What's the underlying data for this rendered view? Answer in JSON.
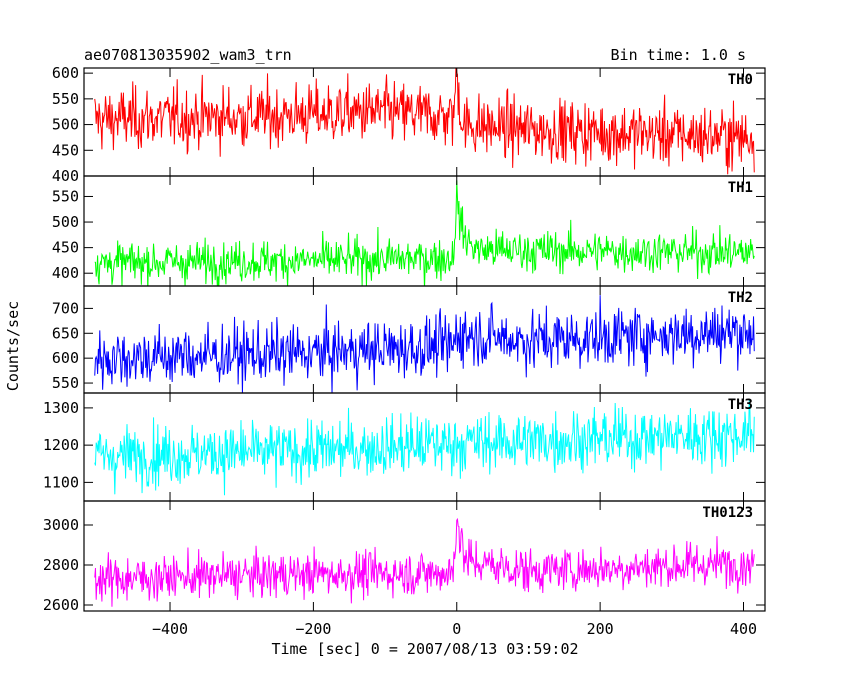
{
  "chart_data": {
    "type": "line",
    "title": "ae070813035902_wam3_trn",
    "subtitle": "Bin time: 1.0 s",
    "xlabel": "Time [sec] 0 = 2007/08/13 03:59:02",
    "ylabel": "Counts/sec",
    "xlim": [
      -520,
      430
    ],
    "x_ticks": [
      -400,
      -200,
      0,
      200,
      400
    ],
    "x_tick_labels": [
      "−400",
      "−200",
      "0",
      "200",
      "400"
    ],
    "data_x_range": [
      -505,
      415
    ],
    "bin_time": 1.0,
    "grid": false,
    "legend": "none",
    "panels": [
      {
        "name": "TH0",
        "color": "#ff0000",
        "ylim": [
          400,
          610
        ],
        "y_ticks": [
          400,
          450,
          500,
          550,
          600
        ],
        "y_tick_labels": [
          "400",
          "450",
          "500",
          "550",
          "600"
        ],
        "noise_sd": 30,
        "trend": [
          [
            -505,
            510
          ],
          [
            -300,
            515
          ],
          [
            -100,
            525
          ],
          [
            -5,
            515
          ],
          [
            0,
            600
          ],
          [
            3,
            560
          ],
          [
            8,
            500
          ],
          [
            100,
            490
          ],
          [
            415,
            475
          ]
        ]
      },
      {
        "name": "TH1",
        "color": "#00ff00",
        "ylim": [
          375,
          590
        ],
        "y_ticks": [
          400,
          450,
          500,
          550
        ],
        "y_tick_labels": [
          "400",
          "450",
          "500",
          "550"
        ],
        "noise_sd": 20,
        "trend": [
          [
            -505,
            420
          ],
          [
            -200,
            425
          ],
          [
            -5,
            430
          ],
          [
            0,
            545
          ],
          [
            4,
            510
          ],
          [
            10,
            470
          ],
          [
            30,
            445
          ],
          [
            415,
            440
          ]
        ]
      },
      {
        "name": "TH2",
        "color": "#0000ff",
        "ylim": [
          530,
          745
        ],
        "y_ticks": [
          550,
          600,
          650,
          700
        ],
        "y_tick_labels": [
          "550",
          "600",
          "650",
          "700"
        ],
        "noise_sd": 30,
        "trend": [
          [
            -505,
            600
          ],
          [
            -200,
            610
          ],
          [
            -5,
            625
          ],
          [
            0,
            650
          ],
          [
            100,
            635
          ],
          [
            415,
            655
          ]
        ]
      },
      {
        "name": "TH3",
        "color": "#00ffff",
        "ylim": [
          1050,
          1340
        ],
        "y_ticks": [
          1100,
          1200,
          1300
        ],
        "y_tick_labels": [
          "1100",
          "1200",
          "1300"
        ],
        "noise_sd": 40,
        "trend": [
          [
            -505,
            1170
          ],
          [
            -200,
            1185
          ],
          [
            0,
            1205
          ],
          [
            415,
            1230
          ]
        ]
      },
      {
        "name": "TH0123",
        "color": "#ff00ff",
        "ylim": [
          2570,
          3120
        ],
        "y_ticks": [
          2600,
          2800,
          3000
        ],
        "y_tick_labels": [
          "2600",
          "2800",
          "3000"
        ],
        "noise_sd": 55,
        "trend": [
          [
            -505,
            2730
          ],
          [
            -200,
            2755
          ],
          [
            -5,
            2760
          ],
          [
            0,
            3060
          ],
          [
            4,
            2950
          ],
          [
            12,
            2820
          ],
          [
            100,
            2770
          ],
          [
            415,
            2810
          ]
        ]
      }
    ]
  }
}
